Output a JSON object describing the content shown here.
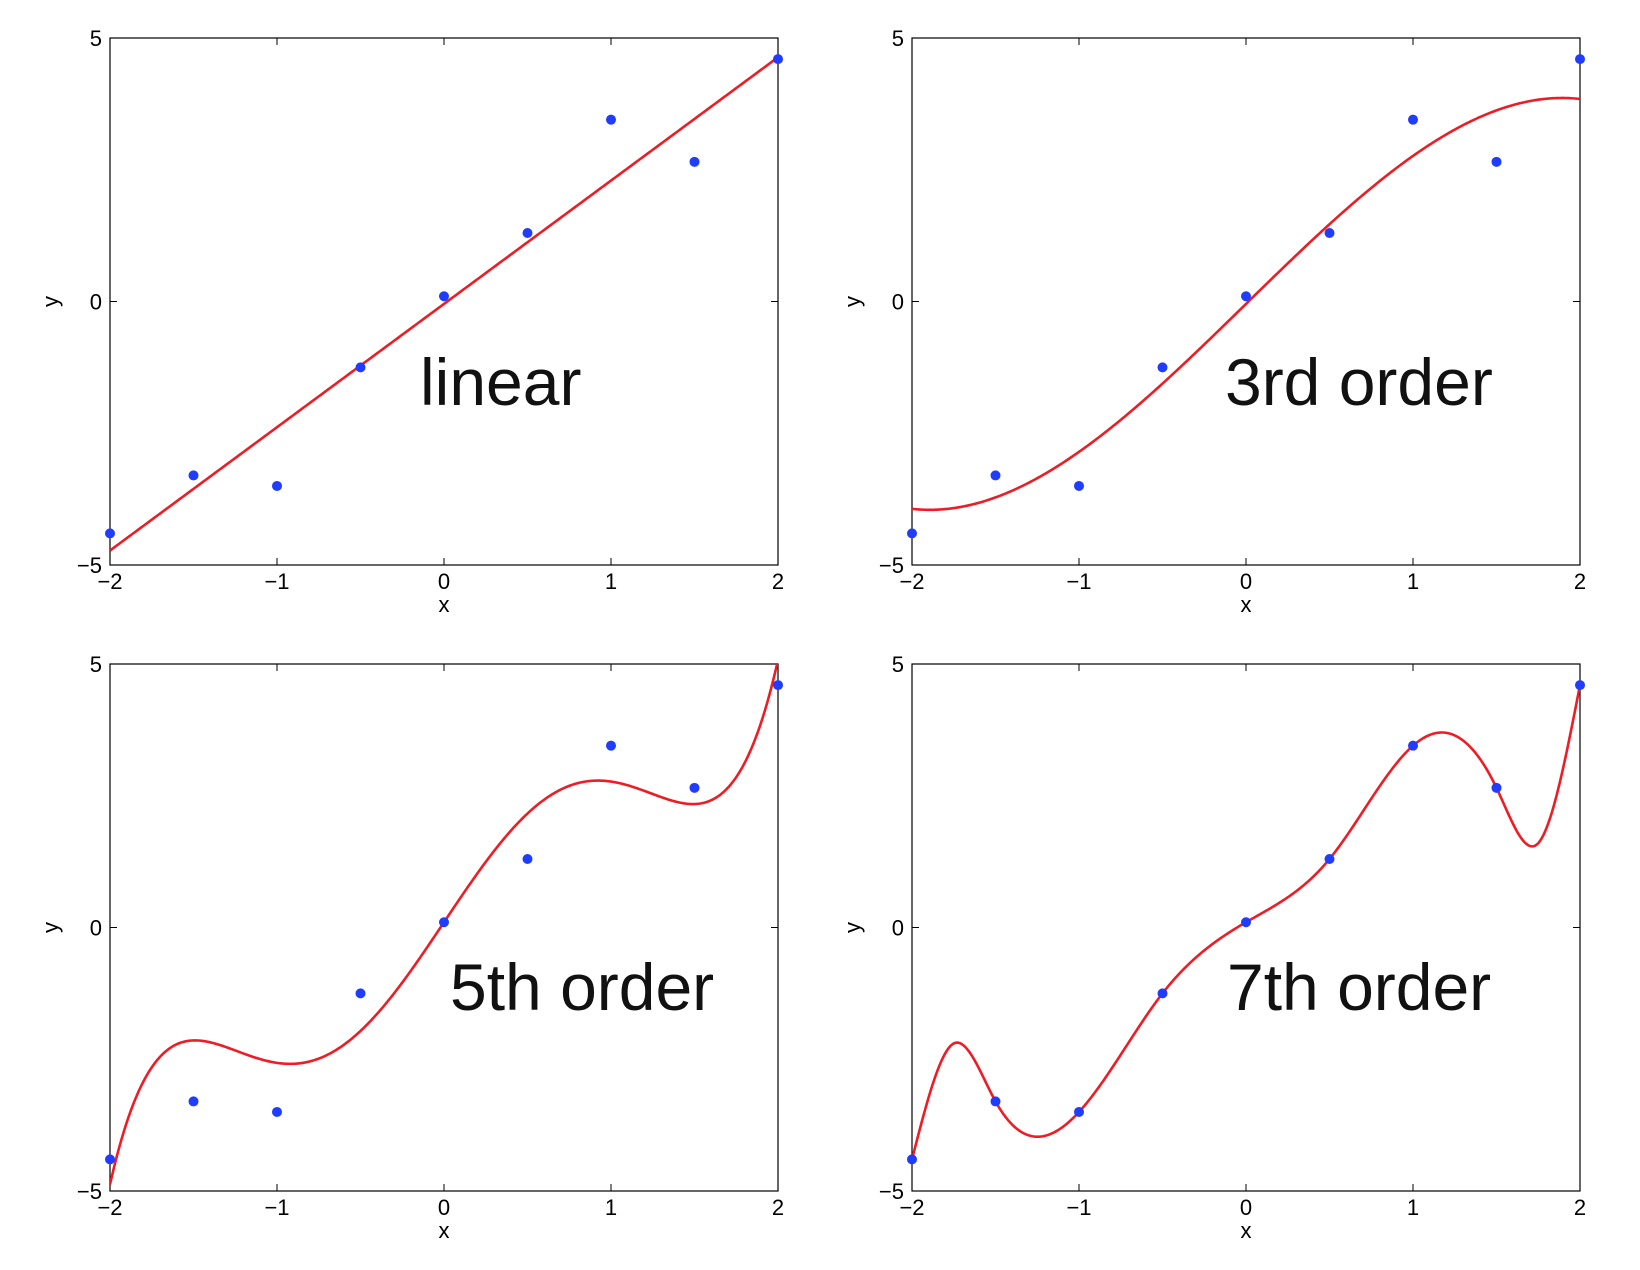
{
  "colors": {
    "fit_line": "#ee1c24",
    "points": "#1f3cff",
    "axes": "#000000",
    "background": "#ffffff"
  },
  "chart_data": [
    {
      "type": "scatter",
      "annotation": "linear",
      "xlabel": "x",
      "ylabel": "y",
      "xlim": [
        -2,
        2
      ],
      "ylim": [
        -5,
        5
      ],
      "xticks": [
        "-2",
        "-1",
        "0",
        "1",
        "2"
      ],
      "yticks": [
        "-5",
        "0",
        "5"
      ],
      "grid": false,
      "legend": "none",
      "series": [
        {
          "kind": "points",
          "x": [
            -2,
            -1.5,
            -1,
            -0.5,
            0,
            0.5,
            1,
            1.5,
            2
          ],
          "y": [
            -4.4,
            -3.3,
            -3.5,
            -1.25,
            0.1,
            1.3,
            3.45,
            2.65,
            4.6
          ]
        },
        {
          "kind": "fit",
          "degree": 1,
          "coefficients": [
            -0.0455,
            2.3399
          ]
        }
      ]
    },
    {
      "type": "scatter",
      "annotation": "3rd order",
      "xlabel": "x",
      "ylabel": "y",
      "xlim": [
        -2,
        2
      ],
      "ylim": [
        -5,
        5
      ],
      "xticks": [
        "-2",
        "-1",
        "0",
        "1",
        "2"
      ],
      "yticks": [
        "-5",
        "0",
        "5"
      ],
      "grid": false,
      "legend": "none",
      "series": [
        {
          "kind": "points",
          "x": [
            -2,
            -1.5,
            -1,
            -0.5,
            0,
            0.5,
            1,
            1.5,
            2
          ],
          "y": [
            -4.4,
            -3.3,
            -3.5,
            -1.25,
            0.1,
            1.3,
            3.45,
            2.65,
            4.6
          ]
        },
        {
          "kind": "fit",
          "degree": 3,
          "coefficients": [
            -0.0455,
            3.0958,
            0,
            -0.2879
          ]
        }
      ]
    },
    {
      "type": "scatter",
      "annotation": "5th order",
      "xlabel": "x",
      "ylabel": "y",
      "xlim": [
        -2,
        2
      ],
      "ylim": [
        -5,
        5
      ],
      "xticks": [
        "-2",
        "-1",
        "0",
        "1",
        "2"
      ],
      "yticks": [
        "-5",
        "0",
        "5"
      ],
      "grid": false,
      "legend": "none",
      "series": [
        {
          "kind": "points",
          "x": [
            -2,
            -1.5,
            -1,
            -0.5,
            0,
            0.5,
            1,
            1.5,
            2
          ],
          "y": [
            -4.4,
            -3.3,
            -3.5,
            -1.25,
            0.1,
            1.3,
            3.45,
            2.65,
            4.6
          ]
        },
        {
          "kind": "fit",
          "degree": 5,
          "coefficients": [
            0.1,
            4.7375,
            0,
            -2.5708,
            0,
            0.5021
          ]
        }
      ]
    },
    {
      "type": "scatter",
      "annotation": "7th order",
      "xlabel": "x",
      "ylabel": "y",
      "xlim": [
        -2,
        2
      ],
      "ylim": [
        -5,
        5
      ],
      "xticks": [
        "-2",
        "-1",
        "0",
        "1",
        "2"
      ],
      "yticks": [
        "-5",
        "0",
        "5"
      ],
      "grid": false,
      "legend": "none",
      "series": [
        {
          "kind": "points",
          "x": [
            -2,
            -1.5,
            -1,
            -0.5,
            0,
            0.5,
            1,
            1.5,
            2
          ],
          "y": [
            -4.4,
            -3.3,
            -3.5,
            -1.25,
            0.1,
            1.3,
            3.45,
            2.65,
            4.6
          ]
        },
        {
          "kind": "interpolant",
          "x": [
            -2,
            -1.75,
            -1.5,
            -1.2,
            -1,
            -0.5,
            0,
            0.5,
            1,
            1.18,
            1.5,
            1.75,
            2
          ],
          "y": [
            -4.4,
            -2.2,
            -3.3,
            -3.95,
            -3.5,
            -1.25,
            0.1,
            1.3,
            3.45,
            3.7,
            2.65,
            1.6,
            4.6
          ]
        }
      ]
    }
  ]
}
